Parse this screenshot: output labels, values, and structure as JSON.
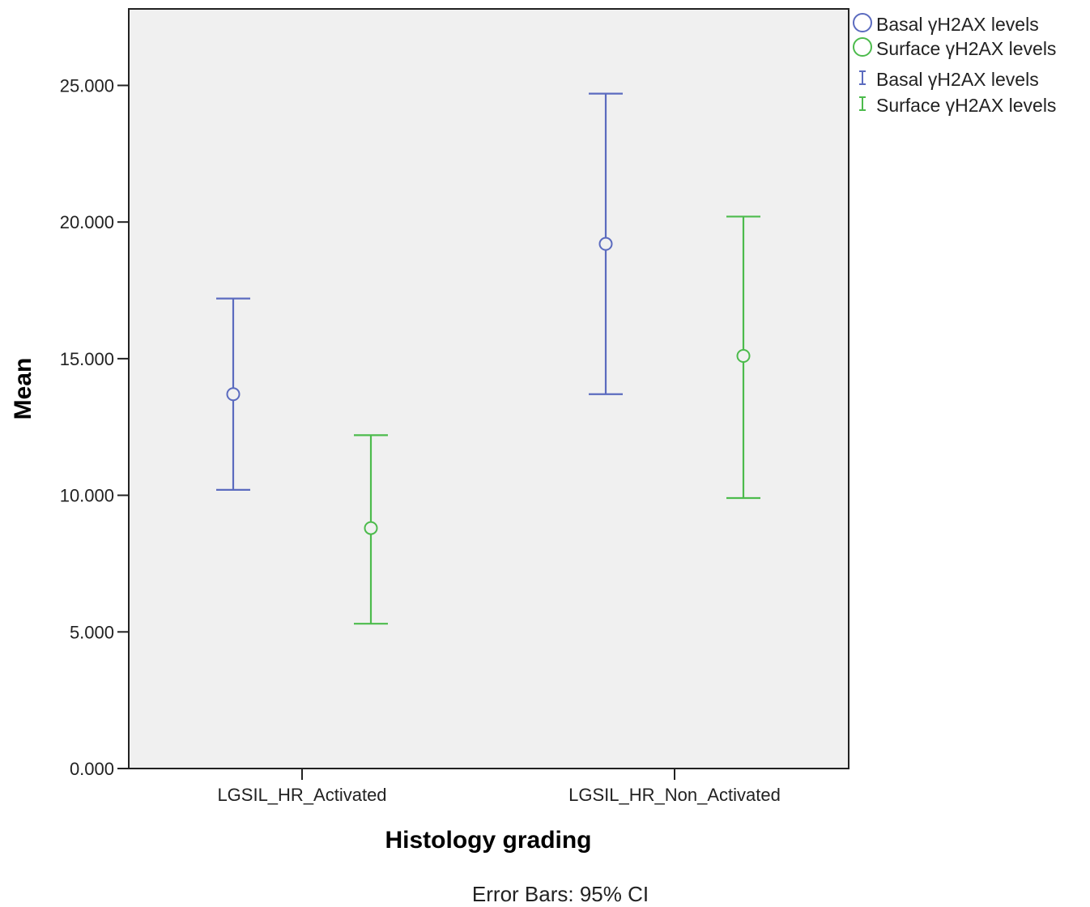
{
  "chart_data": {
    "type": "scatter",
    "subtype": "error-bar",
    "xlabel": "Histology grading",
    "ylabel": "Mean",
    "note": "Error Bars: 95% CI",
    "ylim": [
      0,
      27.8
    ],
    "yticks": [
      {
        "value": 0,
        "label": "0.000"
      },
      {
        "value": 5,
        "label": "5.000"
      },
      {
        "value": 10,
        "label": "10.000"
      },
      {
        "value": 15,
        "label": "15.000"
      },
      {
        "value": 20,
        "label": "20.000"
      },
      {
        "value": 25,
        "label": "25.000"
      }
    ],
    "categories": [
      "LGSIL_HR_Activated",
      "LGSIL_HR_Non_Activated"
    ],
    "grid": false,
    "legend_position": "top-right",
    "series": [
      {
        "name": "Basal γH2AX levels",
        "color": "#5b6bbf",
        "mean": [
          13.7,
          19.2
        ],
        "lower": [
          10.2,
          13.7
        ],
        "upper": [
          17.2,
          24.7
        ]
      },
      {
        "name": "Surface γH2AX levels",
        "color": "#4cbb4c",
        "mean": [
          8.8,
          15.1
        ],
        "lower": [
          5.3,
          9.9
        ],
        "upper": [
          12.2,
          20.2
        ]
      }
    ],
    "legend": [
      {
        "label": "Basal γH2AX levels",
        "symbol": "circle",
        "color": "#5b6bbf"
      },
      {
        "label": "Surface γH2AX levels",
        "symbol": "circle",
        "color": "#4cbb4c"
      },
      {
        "label": "Basal γH2AX levels",
        "symbol": "errorbar",
        "color": "#5b6bbf"
      },
      {
        "label": "Surface γH2AX levels",
        "symbol": "errorbar",
        "color": "#4cbb4c"
      }
    ]
  }
}
